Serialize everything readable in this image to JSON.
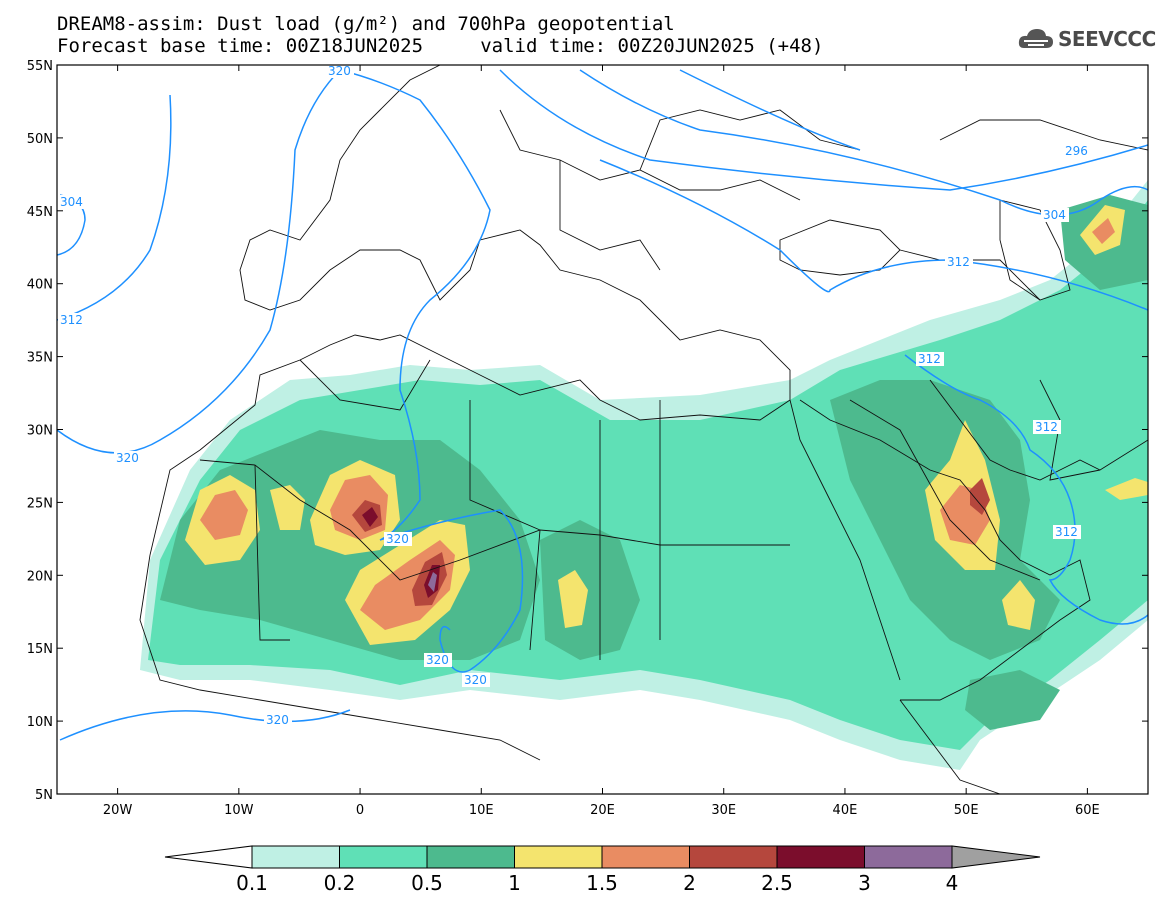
{
  "title": {
    "line1": "DREAM8-assim: Dust load (g/m²) and 700hPa geopotential",
    "line2": "Forecast base time: 00Z18JUN2025     valid time: 00Z20JUN2025 (+48)"
  },
  "logo": {
    "text": "SEEVCCC",
    "icon": "cloud-icon"
  },
  "axes": {
    "lat_labels": [
      "55N",
      "50N",
      "45N",
      "40N",
      "35N",
      "30N",
      "25N",
      "20N",
      "15N",
      "10N",
      "5N"
    ],
    "lon_labels": [
      "20W",
      "10W",
      "0",
      "10E",
      "20E",
      "30E",
      "40E",
      "50E",
      "60E"
    ],
    "lat_range": [
      5,
      55
    ],
    "lon_range": [
      -25,
      65
    ]
  },
  "colorbar": {
    "levels": [
      "0.1",
      "0.2",
      "0.5",
      "1",
      "1.5",
      "2",
      "2.5",
      "3",
      "4"
    ],
    "colors": [
      "#bff0e4",
      "#5fe0b6",
      "#4dba8e",
      "#f4e46e",
      "#e98c62",
      "#b5473d",
      "#7b0d2c",
      "#8d6a9b",
      "#a0a0a0"
    ],
    "under_color": "#ffffff",
    "over_color": "#a0a0a0"
  },
  "contour_labels": [
    "320",
    "304",
    "312",
    "320",
    "320",
    "320",
    "320",
    "320",
    "296",
    "304",
    "312",
    "312",
    "312",
    "312"
  ],
  "contour_color": "#1e90ff",
  "fill_colors": {
    "light": "#bff0e4",
    "mid": "#5fe0b6",
    "dark": "#4dba8e",
    "yellow": "#f4e46e",
    "orange": "#e98c62",
    "brown": "#b5473d",
    "maroon": "#7b0d2c",
    "purple": "#8d6a9b"
  }
}
